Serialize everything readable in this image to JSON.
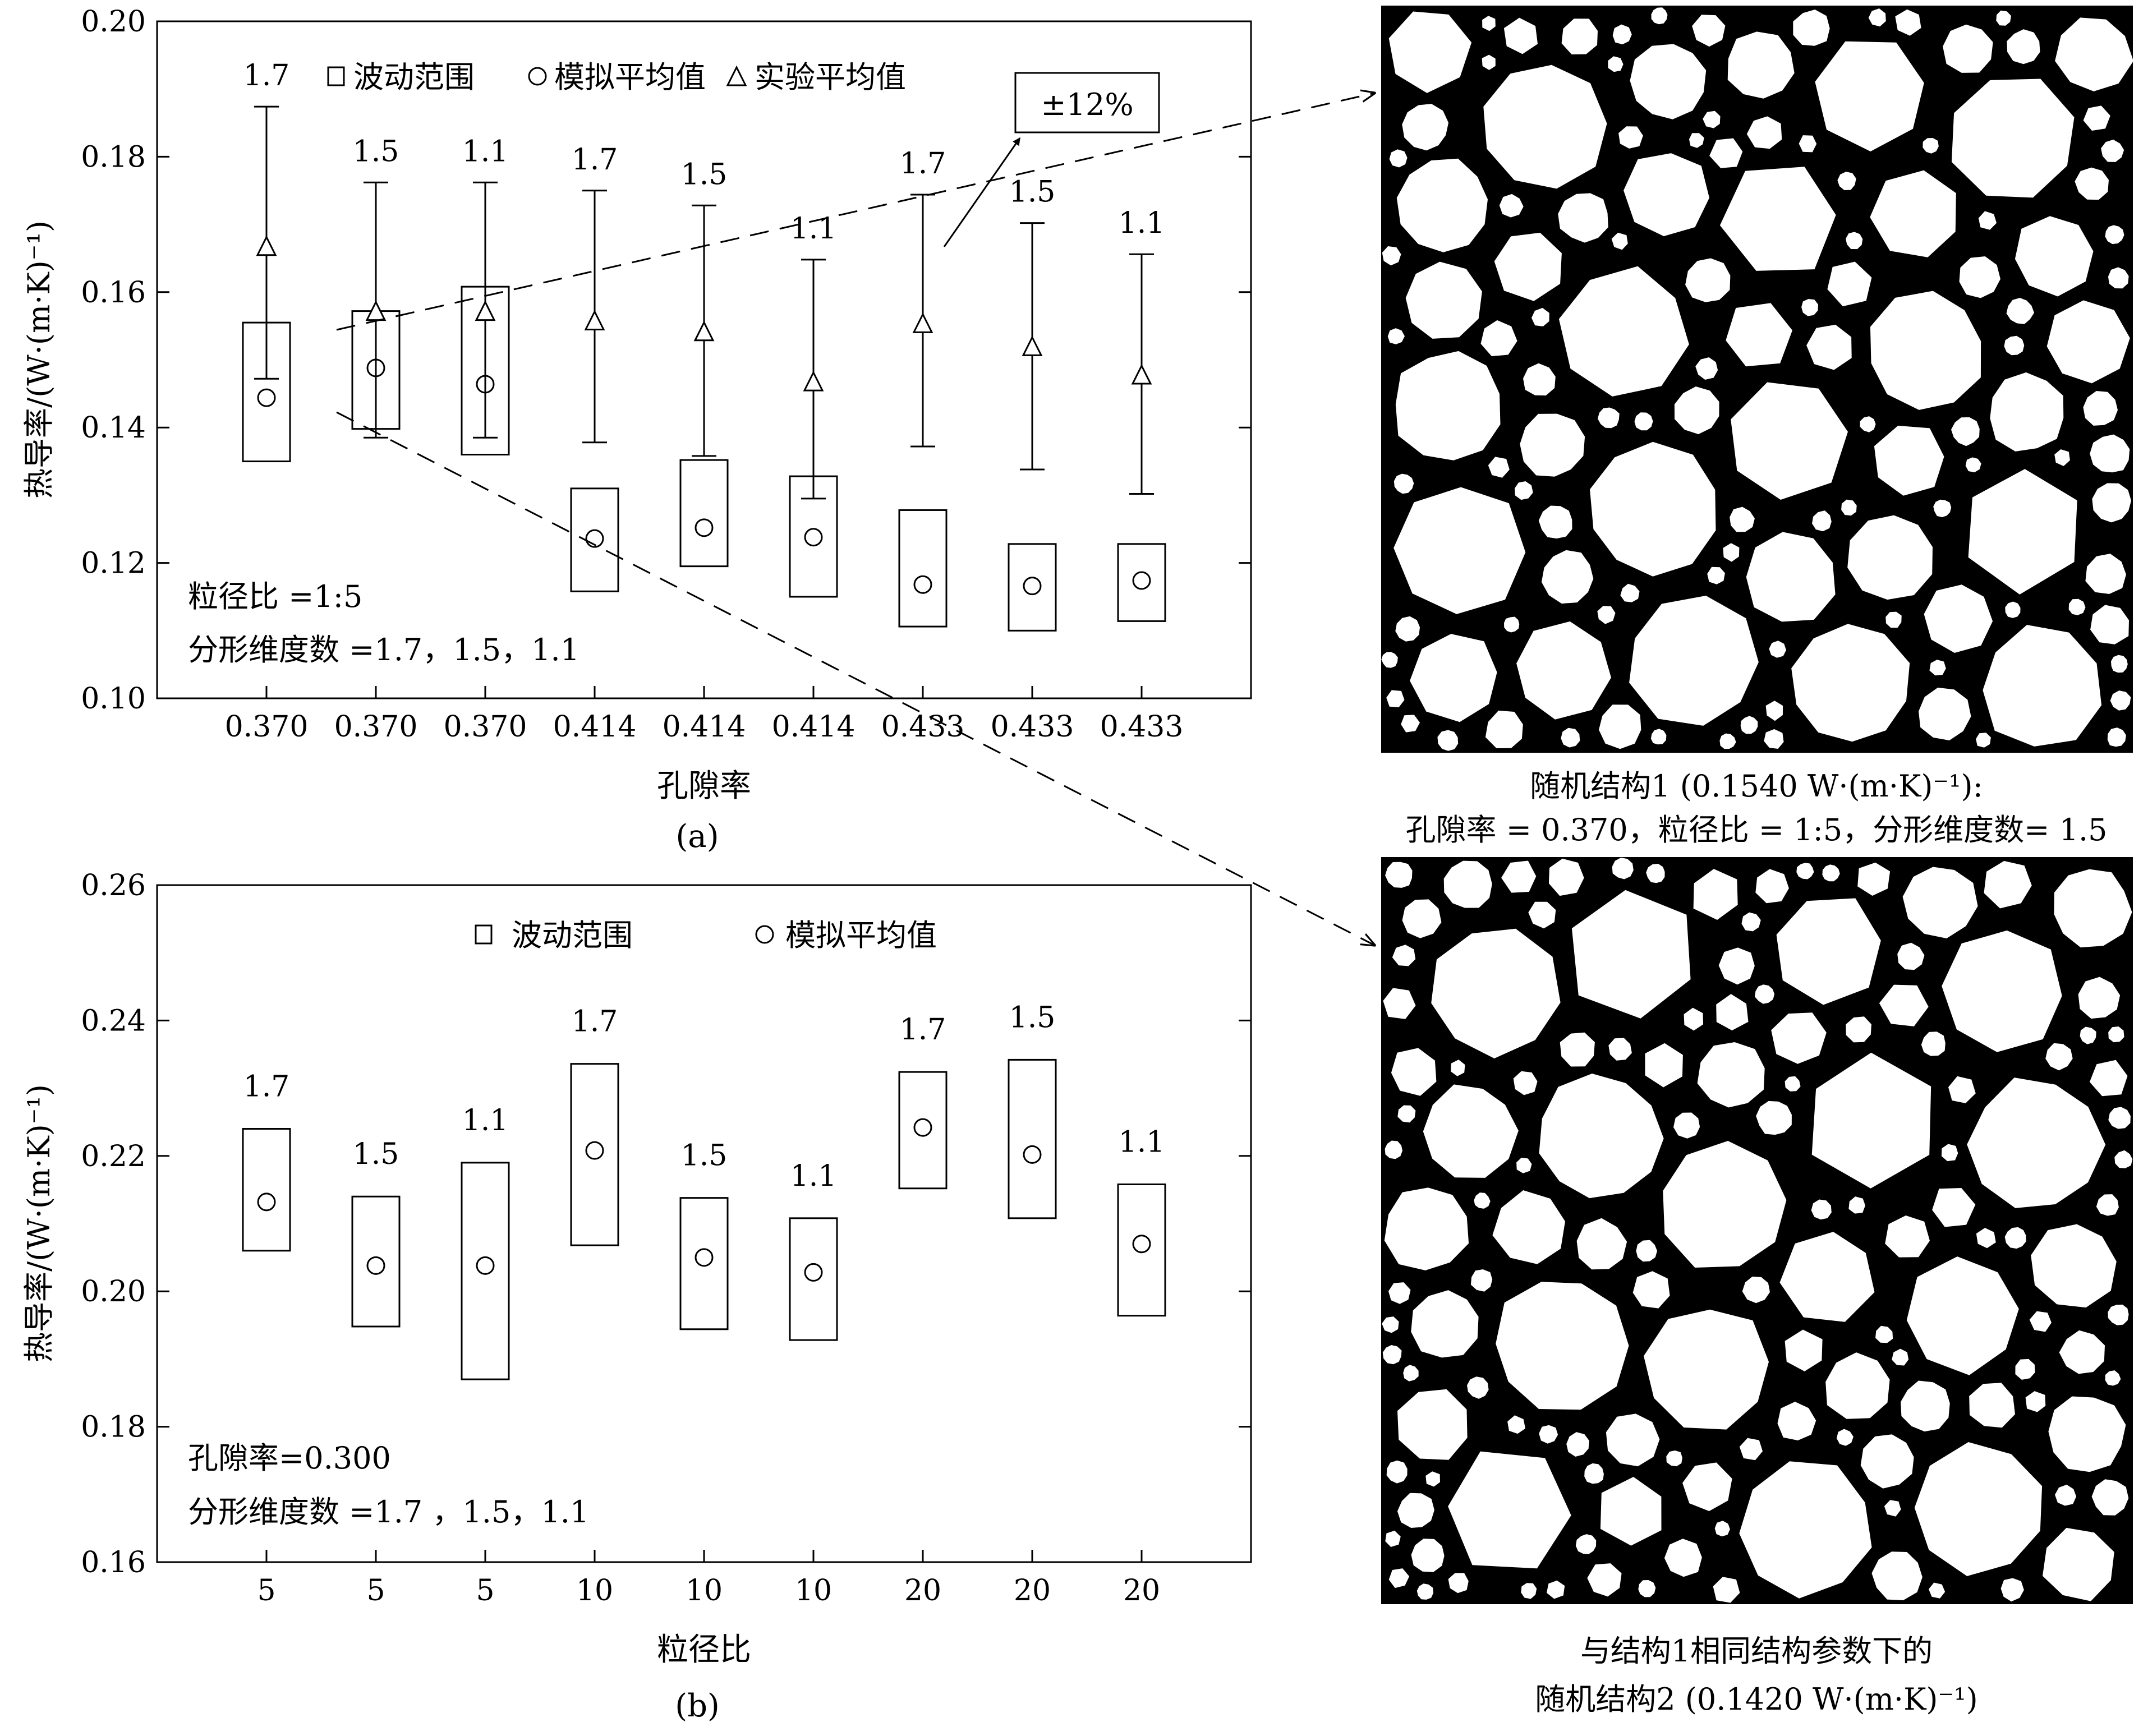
{
  "chart_data": [
    {
      "type": "box-errorbar",
      "panel_label": "(a)",
      "xlabel": "孔隙率",
      "ylabel": "热导率/(W·(m·K)⁻¹)",
      "ylim": [
        0.1,
        0.2
      ],
      "yticks": [
        "0.10",
        "0.12",
        "0.14",
        "0.16",
        "0.18",
        "0.20"
      ],
      "categories": [
        "0.370",
        "0.370",
        "0.370",
        "0.414",
        "0.414",
        "0.414",
        "0.433",
        "0.433",
        "0.433"
      ],
      "fractal_dims": [
        "1.7",
        "1.5",
        "1.1",
        "1.7",
        "1.5",
        "1.1",
        "1.7",
        "1.5",
        "1.1"
      ],
      "series": [
        {
          "name": "波动范围",
          "marker": "square",
          "ranges": [
            [
              0.135,
              0.1555
            ],
            [
              0.1398,
              0.1572
            ],
            [
              0.136,
              0.1608
            ],
            [
              0.1158,
              0.131
            ],
            [
              0.1195,
              0.1352
            ],
            [
              0.115,
              0.1328
            ],
            [
              0.1106,
              0.1278
            ],
            [
              0.11,
              0.1228
            ],
            [
              0.1114,
              0.1228
            ]
          ]
        },
        {
          "name": "模拟平均值",
          "marker": "circle",
          "values": [
            0.1444,
            0.1488,
            0.1464,
            0.1236,
            0.1252,
            0.1238,
            0.1168,
            0.1166,
            0.1174
          ]
        },
        {
          "name": "实验平均值",
          "marker": "triangle",
          "values": [
            0.1668,
            0.1572,
            0.1572,
            0.1558,
            0.1542,
            0.1468,
            0.1554,
            0.152,
            0.1478
          ],
          "error_low": [
            0.1472,
            0.1385,
            0.1385,
            0.1378,
            0.1358,
            0.1295,
            0.1372,
            0.1338,
            0.1302
          ],
          "error_high": [
            0.1874,
            0.1762,
            0.1762,
            0.175,
            0.1728,
            0.1648,
            0.1744,
            0.1702,
            0.1656
          ]
        }
      ],
      "annotation": "±12%",
      "notes": [
        "粒径比 =1:5",
        "分形维度数 =1.7，1.5，1.1"
      ]
    },
    {
      "type": "box",
      "panel_label": "(b)",
      "xlabel": "粒径比",
      "ylabel": "热导率/(W·(m·K)⁻¹)",
      "ylim": [
        0.16,
        0.26
      ],
      "yticks": [
        "0.16",
        "0.18",
        "0.20",
        "0.22",
        "0.24",
        "0.26"
      ],
      "categories": [
        "5",
        "5",
        "5",
        "10",
        "10",
        "10",
        "20",
        "20",
        "20"
      ],
      "fractal_dims": [
        "1.7",
        "1.5",
        "1.1",
        "1.7",
        "1.5",
        "1.1",
        "1.7",
        "1.5",
        "1.1"
      ],
      "series": [
        {
          "name": "波动范围",
          "marker": "square",
          "ranges": [
            [
              0.206,
              0.224
            ],
            [
              0.1948,
              0.214
            ],
            [
              0.187,
              0.219
            ],
            [
              0.2068,
              0.2336
            ],
            [
              0.1944,
              0.2138
            ],
            [
              0.1928,
              0.2108
            ],
            [
              0.2152,
              0.2324
            ],
            [
              0.2108,
              0.2342
            ],
            [
              0.1964,
              0.2158
            ]
          ]
        },
        {
          "name": "模拟平均值",
          "marker": "circle",
          "values": [
            0.2132,
            0.2038,
            0.2038,
            0.2208,
            0.205,
            0.2028,
            0.2242,
            0.2202,
            0.207
          ]
        }
      ],
      "notes": [
        "孔隙率=0.300",
        "分形维度数 =1.7 ，1.5，1.1"
      ]
    }
  ],
  "structure_images": {
    "caption1_line1": "随机结构1 (0.1540 W·(m·K)⁻¹):",
    "caption1_line2": "孔隙率 = 0.370，粒径比 = 1:5，分形维度数= 1.5",
    "caption2_line1": "与结构1相同结构参数下的",
    "caption2_line2": "随机结构2 (0.1420 W·(m·K)⁻¹)"
  }
}
